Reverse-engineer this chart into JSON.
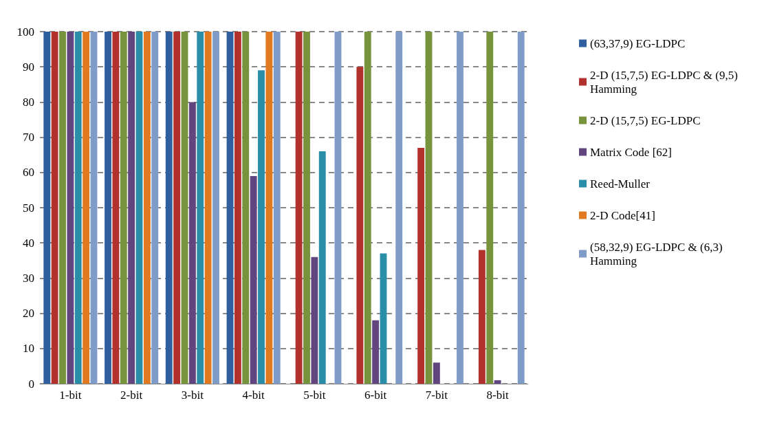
{
  "chart_data": {
    "type": "bar",
    "categories": [
      "1-bit",
      "2-bit",
      "3-bit",
      "4-bit",
      "5-bit",
      "6-bit",
      "7-bit",
      "8-bit"
    ],
    "series": [
      {
        "name": "(63,37,9) EG-LDPC",
        "color": "#2f5f9e",
        "values": [
          100,
          100,
          100,
          100,
          0,
          0,
          0,
          0
        ]
      },
      {
        "name": "2-D (15,7,5) EG-LDPC & (9,5) Hamming",
        "color": "#b3312d",
        "values": [
          100,
          100,
          100,
          100,
          100,
          90,
          67,
          38
        ]
      },
      {
        "name": "2-D (15,7,5) EG-LDPC",
        "color": "#77933c",
        "values": [
          100,
          100,
          100,
          100,
          100,
          100,
          100,
          100
        ]
      },
      {
        "name": "Matrix Code [62]",
        "color": "#60457f",
        "values": [
          100,
          100,
          80,
          59,
          36,
          18,
          6,
          1
        ]
      },
      {
        "name": "Reed-Muller",
        "color": "#2a8ea8",
        "values": [
          100,
          100,
          100,
          89,
          66,
          37,
          0,
          0
        ]
      },
      {
        "name": "2-D Code[41]",
        "color": "#e0791f",
        "values": [
          100,
          100,
          100,
          100,
          0,
          0,
          0,
          0
        ]
      },
      {
        "name": "(58,32,9) EG-LDPC & (6,3) Hamming",
        "color": "#7f9cc9",
        "values": [
          100,
          100,
          100,
          100,
          100,
          100,
          100,
          100
        ]
      }
    ],
    "ylim": [
      0,
      100
    ],
    "yticks": [
      0,
      10,
      20,
      30,
      40,
      50,
      60,
      70,
      80,
      90,
      100
    ],
    "grid": "y",
    "legend": "right"
  }
}
